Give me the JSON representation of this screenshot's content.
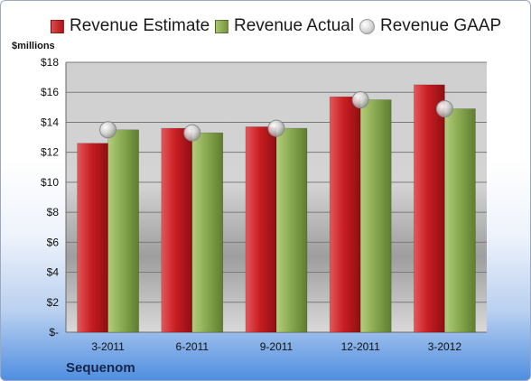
{
  "chart_data": {
    "type": "bar",
    "title": "",
    "ylabel": "$millions",
    "xlabel": "",
    "company": "Sequenom",
    "categories": [
      "3-2011",
      "6-2011",
      "9-2011",
      "12-2011",
      "3-2012"
    ],
    "series": [
      {
        "name": "Revenue Estimate",
        "kind": "bar",
        "color": "#c81e22",
        "values": [
          12.6,
          13.6,
          13.7,
          15.7,
          16.5
        ]
      },
      {
        "name": "Revenue Actual",
        "kind": "bar",
        "color": "#8aab52",
        "values": [
          13.5,
          13.3,
          13.6,
          15.5,
          14.9
        ]
      },
      {
        "name": "Revenue GAAP",
        "kind": "marker",
        "color": "#c8c8c8",
        "values": [
          13.5,
          13.3,
          13.6,
          15.5,
          14.9
        ]
      }
    ],
    "ylim": [
      0,
      18
    ],
    "yticks": [
      "$-",
      "$2",
      "$4",
      "$6",
      "$8",
      "$10",
      "$12",
      "$14",
      "$16",
      "$18"
    ],
    "grid": true,
    "legend_position": "top"
  }
}
